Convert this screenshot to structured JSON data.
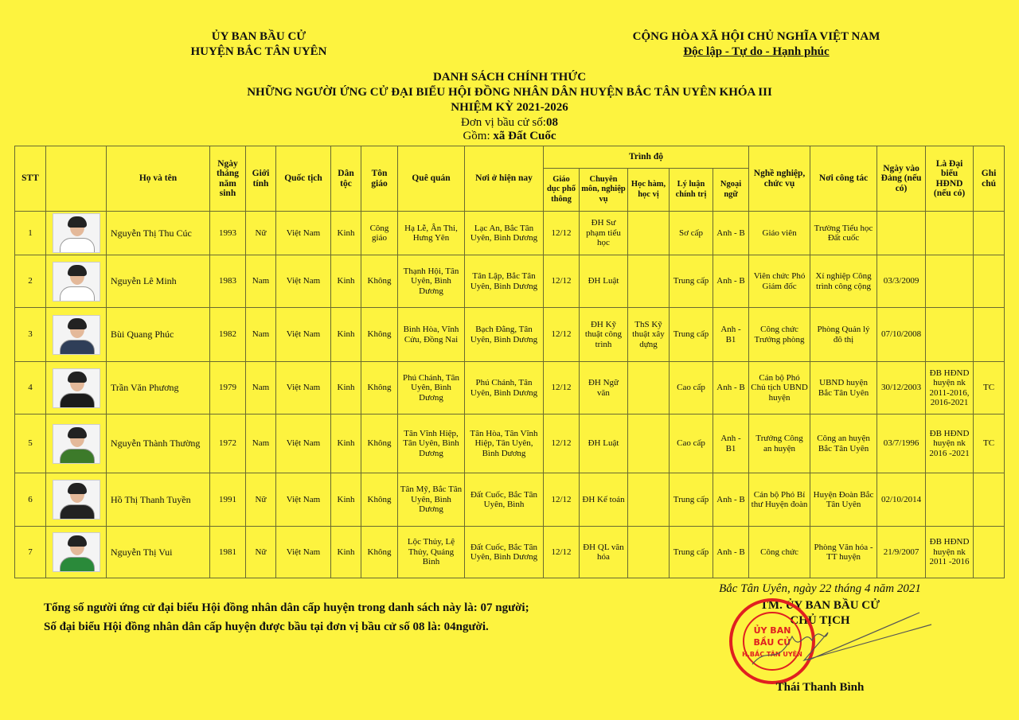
{
  "header": {
    "left1": "ỦY BAN BẦU CỬ",
    "left2": "HUYỆN BẮC TÂN UYÊN",
    "right1": "CỘNG HÒA XÃ HỘI CHỦ NGHĨA VIỆT NAM",
    "right2": "Độc lập - Tự do - Hạnh phúc"
  },
  "title": {
    "line1": "DANH SÁCH CHÍNH THỨC",
    "line2": "NHỮNG NGƯỜI ỨNG CỬ ĐẠI BIỂU HỘI ĐỒNG NHÂN DÂN HUYỆN BẮC TÂN UYÊN KHÓA III",
    "line3": "NHIỆM KỲ 2021-2026",
    "unit_label": "Đơn vị bầu cử số:",
    "unit_no": "08",
    "includes_label": "Gồm:",
    "includes": "xã Đất Cuốc"
  },
  "columns": {
    "stt": "STT",
    "name": "Họ và tên",
    "dob": "Ngày tháng năm sinh",
    "gender": "Giới tính",
    "nationality": "Quốc tịch",
    "ethnicity": "Dân tộc",
    "religion": "Tôn giáo",
    "hometown": "Quê quán",
    "residence": "Nơi ở hiện nay",
    "level": "Trình độ",
    "general_ed": "Giáo dục phổ thông",
    "specialty": "Chuyên môn, nghiệp vụ",
    "degree": "Học hàm, học vị",
    "politics": "Lý luận chính trị",
    "language": "Ngoại ngữ",
    "job": "Nghề nghiệp, chức vụ",
    "workplace": "Nơi công tác",
    "party_date": "Ngày vào Đảng (nếu có)",
    "delegate": "Là Đại biểu HĐND (nếu có)",
    "note": "Ghi chú"
  },
  "rows": [
    {
      "stt": "1",
      "name": "Nguyễn Thị Thu Cúc",
      "dob": "1993",
      "gender": "Nữ",
      "nationality": "Việt Nam",
      "ethnicity": "Kinh",
      "religion": "Công giáo",
      "hometown": "Hạ Lễ, Ân Thi, Hưng Yên",
      "residence": "Lạc An, Bắc Tân Uyên, Bình Dương",
      "general_ed": "12/12",
      "specialty": "ĐH Sư phạm tiểu học",
      "degree": "",
      "politics": "Sơ cấp",
      "language": "Anh - B",
      "job": "Giáo viên",
      "workplace": "Trường Tiểu học Đất cuốc",
      "party_date": "",
      "delegate": "",
      "note": ""
    },
    {
      "stt": "2",
      "name": "Nguyễn Lê Minh",
      "dob": "1983",
      "gender": "Nam",
      "nationality": "Việt Nam",
      "ethnicity": "Kinh",
      "religion": "Không",
      "hometown": "Thạnh Hội, Tân Uyên, Bình Dương",
      "residence": "Tân Lập, Bắc Tân Uyên, Bình Dương",
      "general_ed": "12/12",
      "specialty": "ĐH Luật",
      "degree": "",
      "politics": "Trung cấp",
      "language": "Anh - B",
      "job": "Viên chức Phó Giám đốc",
      "workplace": "Xí nghiệp Công trình công cộng",
      "party_date": "03/3/2009",
      "delegate": "",
      "note": ""
    },
    {
      "stt": "3",
      "name": "Bùi Quang Phúc",
      "dob": "1982",
      "gender": "Nam",
      "nationality": "Việt Nam",
      "ethnicity": "Kinh",
      "religion": "Không",
      "hometown": "Bình Hòa, Vĩnh Cửu, Đồng Nai",
      "residence": "Bạch Đằng, Tân Uyên, Bình Dương",
      "general_ed": "12/12",
      "specialty": "ĐH Kỹ thuật công trình",
      "degree": "ThS Kỹ thuật xây dựng",
      "politics": "Trung cấp",
      "language": "Anh - B1",
      "job": "Công chức Trưởng phòng",
      "workplace": "Phòng Quản lý đô thị",
      "party_date": "07/10/2008",
      "delegate": "",
      "note": ""
    },
    {
      "stt": "4",
      "name": "Trần Văn Phương",
      "dob": "1979",
      "gender": "Nam",
      "nationality": "Việt Nam",
      "ethnicity": "Kinh",
      "religion": "Không",
      "hometown": "Phú Chánh, Tân Uyên, Bình Dương",
      "residence": "Phú Chánh, Tân Uyên, Bình Dương",
      "general_ed": "12/12",
      "specialty": "ĐH Ngữ văn",
      "degree": "",
      "politics": "Cao cấp",
      "language": "Anh - B",
      "job": "Cán bộ Phó Chủ tịch UBND huyện",
      "workplace": "UBND huyện Bắc Tân Uyên",
      "party_date": "30/12/2003",
      "delegate": "ĐB HĐND huyện nk 2011-2016, 2016-2021",
      "note": "TC"
    },
    {
      "stt": "5",
      "name": "Nguyễn Thành Thường",
      "dob": "1972",
      "gender": "Nam",
      "nationality": "Việt Nam",
      "ethnicity": "Kinh",
      "religion": "Không",
      "hometown": "Tân Vĩnh Hiệp, Tân Uyên, Bình Dương",
      "residence": "Tân Hòa, Tân Vĩnh Hiệp, Tân Uyên, Bình Dương",
      "general_ed": "12/12",
      "specialty": "ĐH Luật",
      "degree": "",
      "politics": "Cao cấp",
      "language": "Anh - B1",
      "job": "Trưởng Công an huyện",
      "workplace": "Công an huyện Bắc Tân Uyên",
      "party_date": "03/7/1996",
      "delegate": "ĐB HĐND huyện nk 2016 -2021",
      "note": "TC"
    },
    {
      "stt": "6",
      "name": "Hồ Thị Thanh Tuyền",
      "dob": "1991",
      "gender": "Nữ",
      "nationality": "Việt Nam",
      "ethnicity": "Kinh",
      "religion": "Không",
      "hometown": "Tân Mỹ, Bắc Tân Uyên, Bình Dương",
      "residence": "Đất Cuốc, Bắc Tân Uyên, Bình",
      "general_ed": "12/12",
      "specialty": "ĐH Kế toán",
      "degree": "",
      "politics": "Trung cấp",
      "language": "Anh - B",
      "job": "Cán bộ Phó Bí thư Huyện đoàn",
      "workplace": "Huyện Đoàn Bắc Tân Uyên",
      "party_date": "02/10/2014",
      "delegate": "",
      "note": ""
    },
    {
      "stt": "7",
      "name": "Nguyễn Thị Vui",
      "dob": "1981",
      "gender": "Nữ",
      "nationality": "Việt Nam",
      "ethnicity": "Kinh",
      "religion": "Không",
      "hometown": "Lộc Thủy, Lệ Thủy, Quảng Bình",
      "residence": "Đất Cuốc, Bắc Tân Uyên, Bình Dương",
      "general_ed": "12/12",
      "specialty": "ĐH QL văn hóa",
      "degree": "",
      "politics": "Trung cấp",
      "language": "Anh - B",
      "job": "Công chức",
      "workplace": "Phòng Văn hóa - TT huyện",
      "party_date": "21/9/2007",
      "delegate": "ĐB HĐND huyện nk 2011 -2016",
      "note": ""
    }
  ],
  "photo_colors": [
    "#ffffff",
    "#ffffff",
    "#2f3e58",
    "#1b1b1b",
    "#3c7a2a",
    "#222222",
    "#2a8a3a"
  ],
  "footer": {
    "total": "Tổng số người ứng cử đại biểu Hội đồng nhân dân cấp huyện trong danh sách này là: 07 người;",
    "elected": "Số đại biểu Hội đồng nhân dân cấp huyện được bầu tại đơn vị bầu cử số 08 là: 04người."
  },
  "signature": {
    "place_date": "Bắc Tân Uyên, ngày 22  tháng 4 năm 2021",
    "org": "TM. ỦY BAN BẦU CỬ",
    "role": "CHỦ TỊCH",
    "name": "Thái Thanh Bình",
    "stamp_text": "ỦY BAN BẦU CỬ H.BẮC TÂN UYÊN — CỘNG HÒA XÃ HỘI CHỦ NGHĨA VIỆT NAM — TỈNH BÌNH DƯƠNG"
  },
  "colors": {
    "background": "#fdf33f",
    "stamp": "#e02020"
  }
}
